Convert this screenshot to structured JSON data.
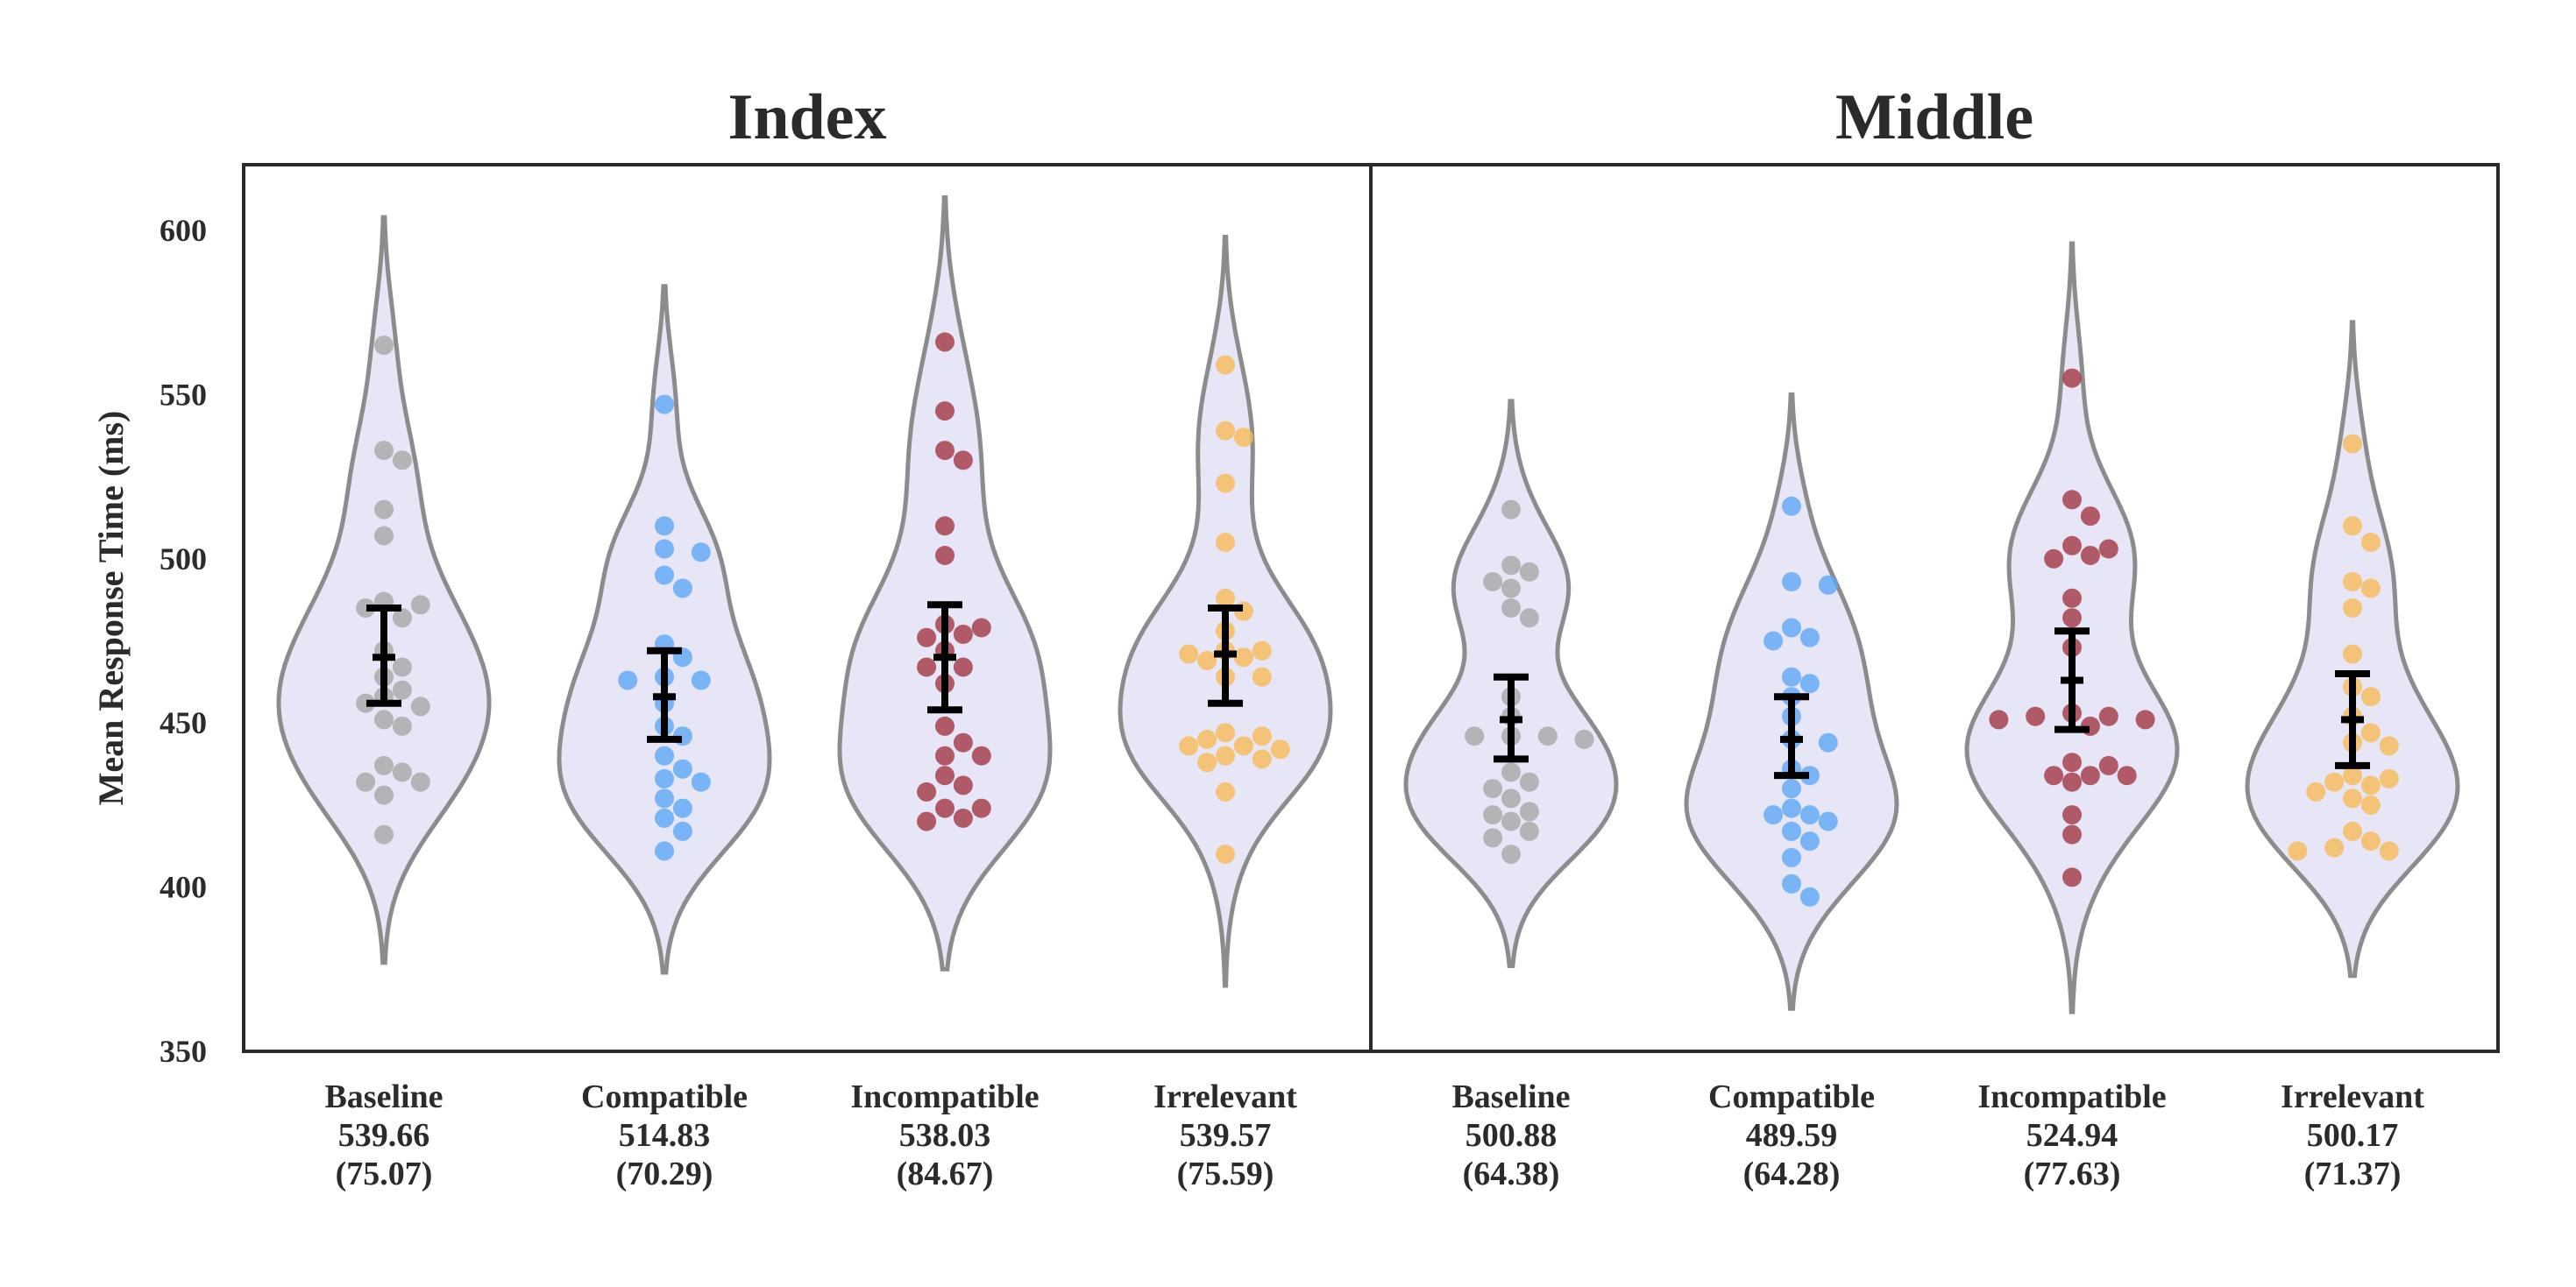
{
  "chart_data": {
    "type": "violin",
    "ylabel": "Mean Response Time (ms)",
    "ylim": [
      350,
      620
    ],
    "yticks": [
      350,
      400,
      450,
      500,
      550,
      600
    ],
    "grid": false,
    "colors": {
      "Baseline": "#a8a8a8",
      "Compatible": "#5fa8f5",
      "Incompatible": "#a33a48",
      "Irrelevant": "#f7bb5c",
      "violin_fill": "#e6e6f6",
      "violin_edge": "#8c8c8c"
    },
    "panels": [
      {
        "title": "Index",
        "groups": [
          {
            "condition": "Baseline",
            "summary_lines": [
              "Baseline",
              "539.66",
              "(75.07)"
            ],
            "violin_range": [
              377,
              604
            ],
            "ci": {
              "mean": 470,
              "low": 456,
              "high": 485
            },
            "points": [
              565,
              533,
              530,
              515,
              507,
              487,
              486,
              485,
              482,
              472,
              467,
              464,
              460,
              458,
              456,
              455,
              451,
              449,
              437,
              435,
              432,
              432,
              428,
              416
            ]
          },
          {
            "condition": "Compatible",
            "summary_lines": [
              "Compatible",
              "514.83",
              "(70.29)"
            ],
            "violin_range": [
              374,
              583
            ],
            "ci": {
              "mean": 458,
              "low": 445,
              "high": 472
            },
            "points": [
              547,
              510,
              503,
              502,
              495,
              491,
              474,
              470,
              464,
              463,
              463,
              456,
              449,
              446,
              440,
              436,
              433,
              432,
              427,
              424,
              421,
              417,
              411
            ]
          },
          {
            "condition": "Incompatible",
            "summary_lines": [
              "Incompatible",
              "538.03",
              "(84.67)"
            ],
            "violin_range": [
              375,
              610
            ],
            "ci": {
              "mean": 470,
              "low": 454,
              "high": 486
            },
            "points": [
              566,
              545,
              533,
              530,
              510,
              501,
              480,
              479,
              477,
              476,
              472,
              467,
              467,
              462,
              449,
              444,
              440,
              440,
              434,
              431,
              429,
              424,
              424,
              421,
              420
            ]
          },
          {
            "condition": "Irrelevant",
            "summary_lines": [
              "Irrelevant",
              "539.57",
              "(75.59)"
            ],
            "violin_range": [
              370,
              598
            ],
            "ci": {
              "mean": 471,
              "low": 456,
              "high": 485
            },
            "points": [
              559,
              539,
              537,
              523,
              505,
              488,
              484,
              478,
              472,
              472,
              471,
              470,
              469,
              464,
              464,
              447,
              446,
              445,
              443,
              443,
              442,
              440,
              439,
              438,
              429,
              410
            ]
          }
        ]
      },
      {
        "title": "Middle",
        "groups": [
          {
            "condition": "Baseline",
            "summary_lines": [
              "Baseline",
              "500.88",
              "(64.38)"
            ],
            "violin_range": [
              376,
              548
            ],
            "ci": {
              "mean": 451,
              "low": 439,
              "high": 464
            },
            "points": [
              515,
              498,
              496,
              493,
              491,
              485,
              482,
              458,
              452,
              446,
              446,
              446,
              445,
              435,
              432,
              430,
              427,
              423,
              422,
              420,
              417,
              415,
              410
            ]
          },
          {
            "condition": "Compatible",
            "summary_lines": [
              "Compatible",
              "489.59",
              "(64.28)"
            ],
            "violin_range": [
              363,
              550
            ],
            "ci": {
              "mean": 445,
              "low": 434,
              "high": 458
            },
            "points": [
              516,
              493,
              492,
              479,
              476,
              475,
              464,
              462,
              458,
              452,
              445,
              444,
              436,
              434,
              430,
              424,
              422,
              422,
              420,
              417,
              414,
              409,
              401,
              397
            ]
          },
          {
            "condition": "Incompatible",
            "summary_lines": [
              "Incompatible",
              "524.94",
              "(77.63)"
            ],
            "violin_range": [
              362,
              596
            ],
            "ci": {
              "mean": 463,
              "low": 448,
              "high": 478
            },
            "points": [
              555,
              518,
              513,
              504,
              503,
              501,
              500,
              488,
              482,
              473,
              453,
              452,
              452,
              451,
              451,
              449,
              438,
              437,
              434,
              434,
              434,
              432,
              422,
              416,
              403
            ]
          },
          {
            "condition": "Irrelevant",
            "summary_lines": [
              "Irrelevant",
              "500.17",
              "(71.37)"
            ],
            "violin_range": [
              373,
              572
            ],
            "ci": {
              "mean": 451,
              "low": 437,
              "high": 465
            },
            "points": [
              535,
              510,
              505,
              493,
              491,
              485,
              471,
              461,
              458,
              452,
              447,
              444,
              443,
              434,
              433,
              432,
              431,
              429,
              427,
              425,
              417,
              414,
              412,
              411,
              411
            ]
          }
        ]
      }
    ]
  }
}
